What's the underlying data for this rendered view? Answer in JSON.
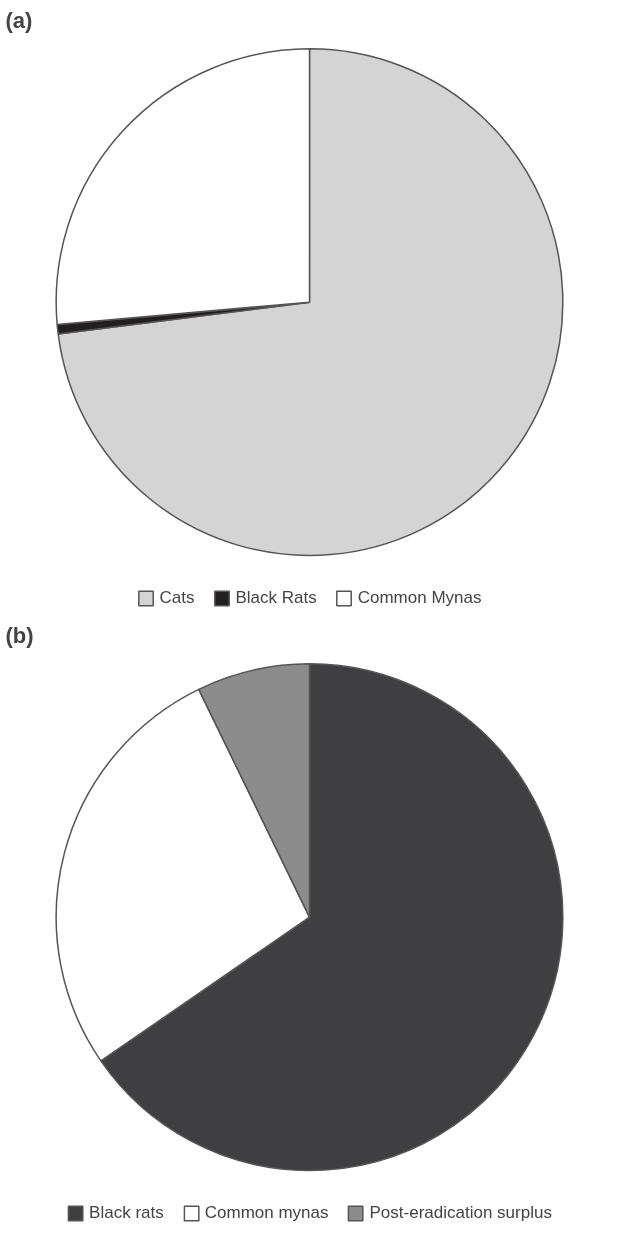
{
  "chart_data": [
    {
      "type": "pie",
      "title": "(a)",
      "categories": [
        "Cats",
        "Black Rats",
        "Common Mynas"
      ],
      "values": [
        73.0,
        0.6,
        26.4
      ],
      "colors": [
        "#d4d4d4",
        "#231f20",
        "#ffffff"
      ],
      "legend": "bottom"
    },
    {
      "type": "pie",
      "title": "(b)",
      "categories": [
        "Black rats",
        "Common mynas",
        "Post-eradication surplus"
      ],
      "values": [
        65.4,
        27.4,
        7.2
      ],
      "colors": [
        "#3f3f41",
        "#ffffff",
        "#8c8c8c"
      ],
      "legend": "bottom"
    }
  ]
}
